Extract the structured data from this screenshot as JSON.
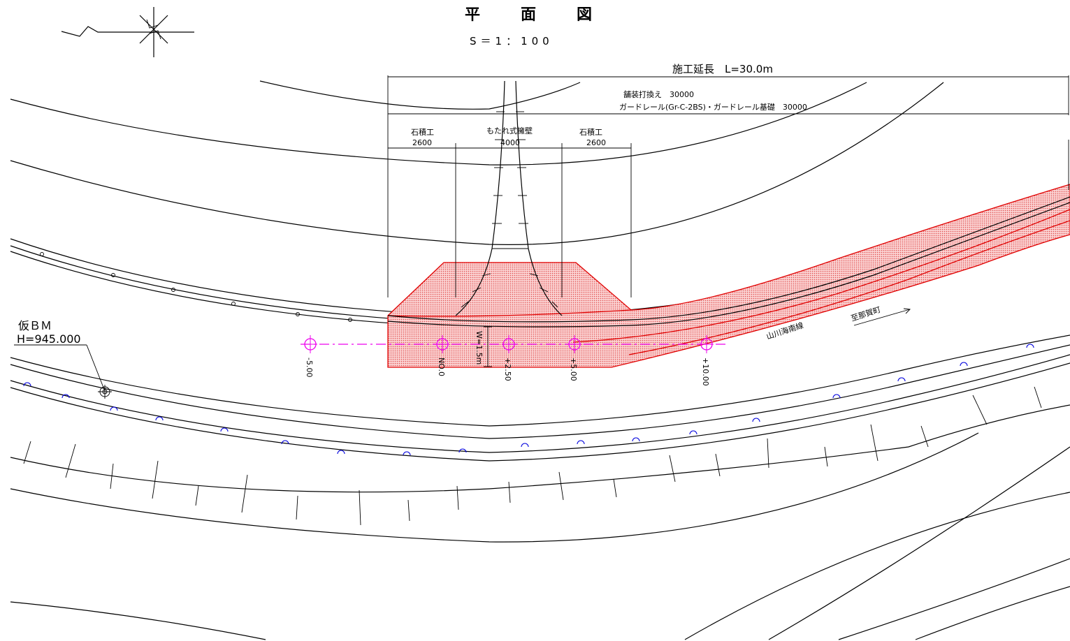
{
  "title": "平　面　図",
  "scale": "S＝1：100",
  "construction_length": "施工延長　L=30.0m",
  "pavement_label": "舗装打換え　30000",
  "guardrail_label": "ガードレール(Gr-C-2BS)・ガードレール基礎　30000",
  "segments": [
    {
      "name": "石積工",
      "length": "2600"
    },
    {
      "name": "もたれ式擁壁",
      "length": "4000"
    },
    {
      "name": "石積工",
      "length": "2600"
    }
  ],
  "benchmark": {
    "label": "仮ＢＭ",
    "elevation": "H=945.000"
  },
  "road_name": "山川海南線",
  "direction": "至那賀町",
  "width_label": "W=1.5m",
  "stations": [
    "-5.00",
    "NO.0",
    "+2.50",
    "+5.00",
    "+10.00"
  ],
  "colors": {
    "highlight": "#f4a6a6",
    "highlight_edge": "#e00000",
    "centerline": "#ee00ee",
    "inlet": "#0000dd"
  }
}
